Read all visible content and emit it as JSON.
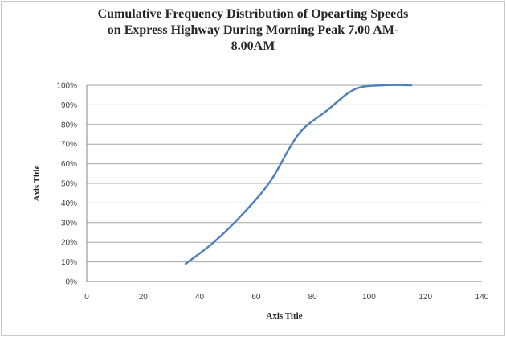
{
  "chart_data": {
    "type": "line",
    "title_lines": [
      "Cumulative Frequency Distribution of  Opearting Speeds",
      "on Express  Highway During Morning Peak 7.00 AM-",
      "8.00AM"
    ],
    "xlabel": "Axis Title",
    "ylabel": "Axis Title",
    "xlim": [
      0,
      140
    ],
    "ylim": [
      0,
      100
    ],
    "x_ticks": [
      "0",
      "20",
      "40",
      "60",
      "80",
      "100",
      "120",
      "140"
    ],
    "y_ticks": [
      "0%",
      "10%",
      "20%",
      "30%",
      "40%",
      "50%",
      "60%",
      "70%",
      "80%",
      "90%",
      "100%"
    ],
    "grid": true,
    "series": [
      {
        "color": "#4f81bd",
        "x": [
          35,
          45,
          55,
          65,
          75,
          85,
          95,
          105,
          115
        ],
        "y": [
          9,
          20,
          34,
          51,
          75,
          87,
          98,
          100,
          100
        ]
      }
    ]
  }
}
